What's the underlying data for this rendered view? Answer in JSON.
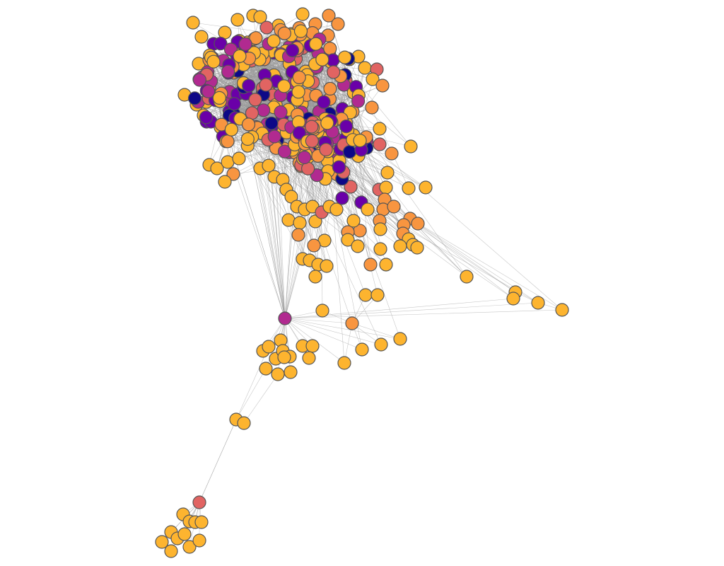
{
  "graph": {
    "palette": {
      "c0": "#0d0887",
      "c1": "#6a00a8",
      "c2": "#b12a90",
      "c3": "#e16462",
      "c4": "#f89540",
      "c5": "#fdb42f",
      "edge": "#9a9a9a",
      "stroke": "#555555"
    }
  }
}
